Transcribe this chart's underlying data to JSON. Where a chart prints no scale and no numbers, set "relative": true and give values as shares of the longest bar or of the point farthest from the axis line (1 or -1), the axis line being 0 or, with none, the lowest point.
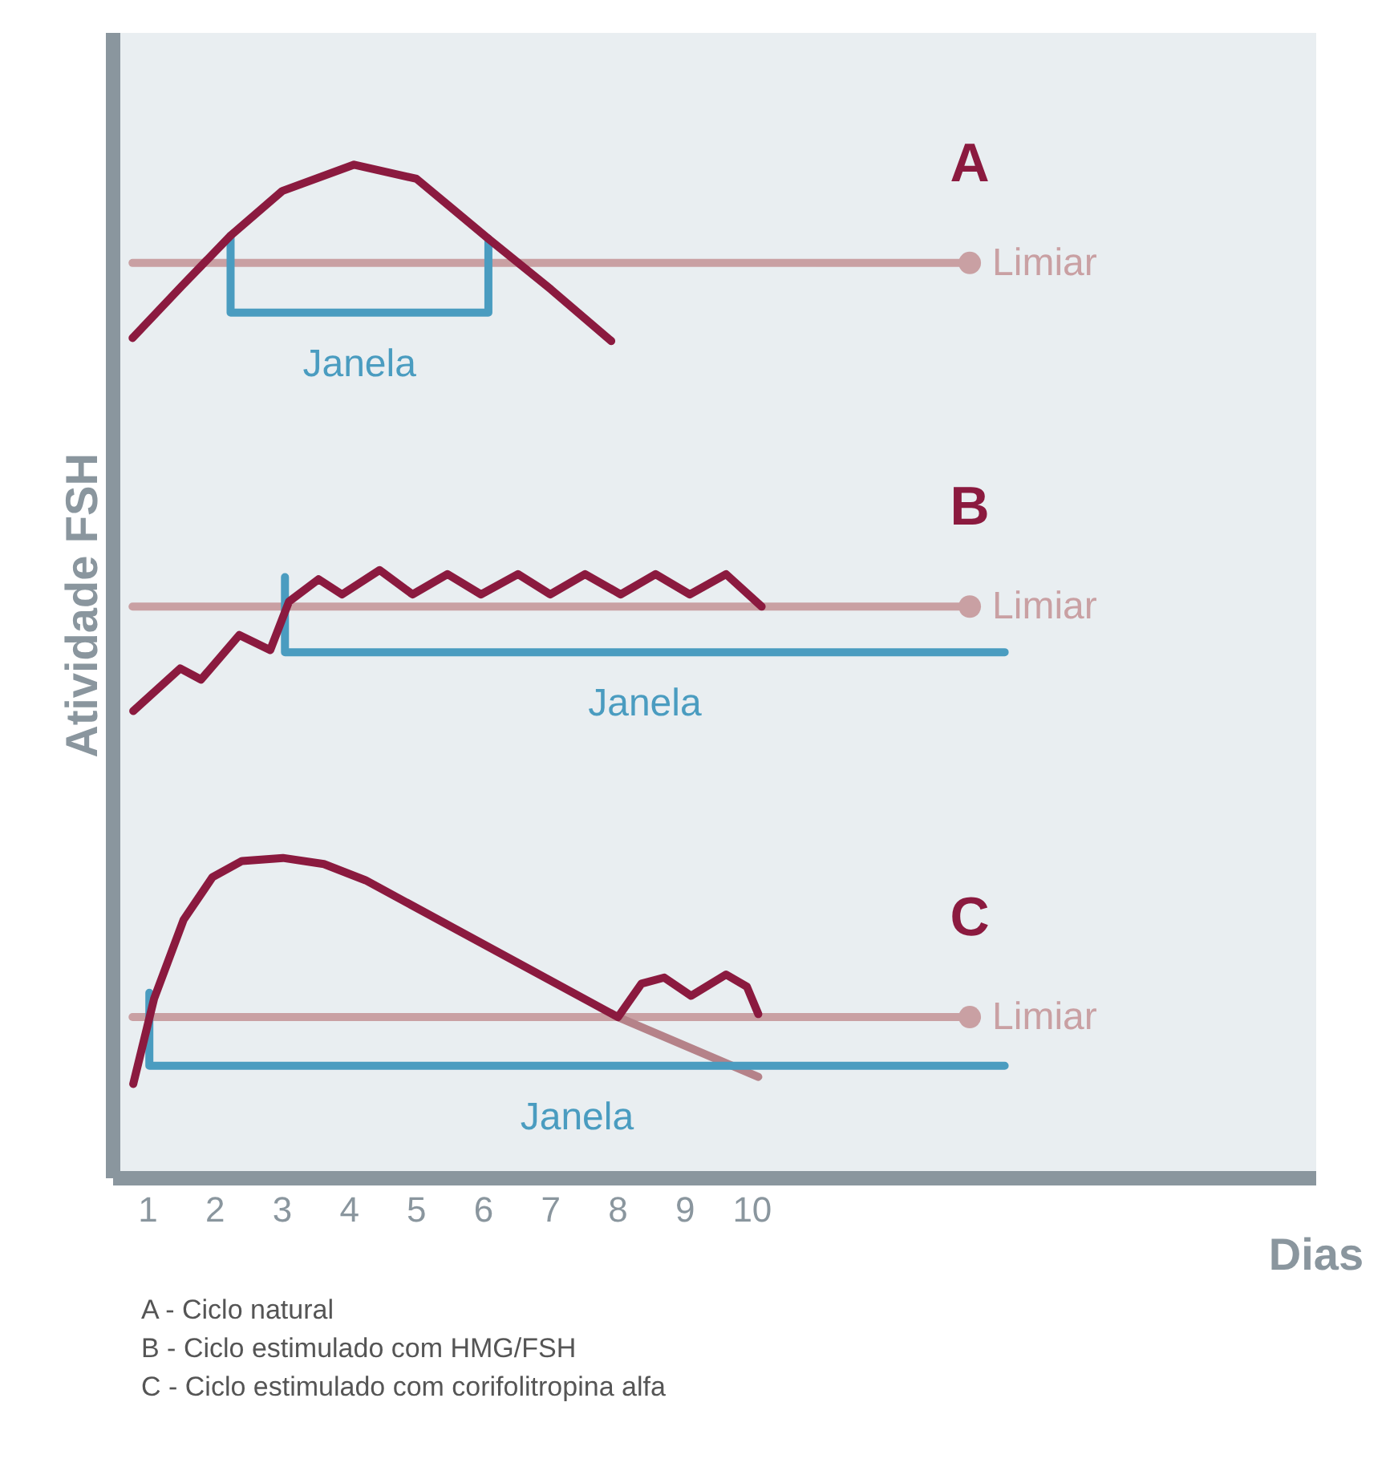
{
  "chart_data": {
    "type": "line",
    "relative": true,
    "xlabel": "Dias",
    "ylabel": "Atividade FSH",
    "xlim": [
      0.48,
      18.4
    ],
    "xticks": [
      1,
      2,
      3,
      4,
      5,
      6,
      7,
      8,
      9,
      10
    ],
    "grid": false,
    "series": [
      {
        "name": "Limiar",
        "color": "#c9a0a3",
        "x": [
          0.77,
          13.24
        ],
        "values": [
          0.903,
          0.903
        ]
      },
      {
        "name": "Janela",
        "color": "#4a9cc0",
        "x": [
          2.23,
          2.23,
          6.07,
          6.07
        ],
        "values": [
          0.93,
          0.854,
          0.854,
          0.927
        ]
      },
      {
        "color": "#8b1a3f",
        "x": [
          0.77,
          1.5,
          2.23,
          3,
          4.07,
          5,
          6.07,
          7,
          7.9
        ],
        "values": [
          0.829,
          0.88,
          0.93,
          0.974,
          1.0,
          0.986,
          0.927,
          0.877,
          0.826
        ]
      },
      {
        "name": "Limiar",
        "color": "#c9a0a3",
        "x": [
          0.77,
          13.24
        ],
        "values": [
          0.564,
          0.564
        ]
      },
      {
        "name": "Janela",
        "color": "#4a9cc0",
        "x": [
          3.04,
          3.04,
          13.76
        ],
        "values": [
          0.593,
          0.519,
          0.519
        ]
      },
      {
        "color": "#8b1a3f",
        "x": [
          0.78,
          1.48,
          1.79,
          2.36,
          2.82,
          3.1,
          3.54,
          3.89,
          4.45,
          4.94,
          5.46,
          5.96,
          6.51,
          6.99,
          7.51,
          8.04,
          8.56,
          9.07,
          9.61,
          10.14
        ],
        "values": [
          0.461,
          0.503,
          0.492,
          0.536,
          0.521,
          0.569,
          0.591,
          0.576,
          0.6,
          0.576,
          0.596,
          0.576,
          0.596,
          0.576,
          0.596,
          0.576,
          0.596,
          0.576,
          0.596,
          0.564
        ]
      },
      {
        "name": "Limiar",
        "color": "#c9a0a3",
        "x": [
          0.77,
          13.24
        ],
        "values": [
          0.159,
          0.159
        ]
      },
      {
        "color": "#b58289",
        "x": [
          8.0,
          10.09
        ],
        "values": [
          0.159,
          0.1
        ]
      },
      {
        "name": "Janela",
        "color": "#4a9cc0",
        "x": [
          1.02,
          1.02,
          13.76
        ],
        "values": [
          0.183,
          0.111,
          0.111
        ]
      },
      {
        "color": "#8b1a3f",
        "x": [
          0.78,
          1.09,
          1.53,
          1.96,
          2.4,
          3.01,
          3.62,
          4.24,
          8.0,
          8.35,
          8.69,
          9.09,
          9.61,
          9.92,
          10.09
        ],
        "values": [
          0.093,
          0.177,
          0.255,
          0.297,
          0.313,
          0.316,
          0.31,
          0.294,
          0.159,
          0.192,
          0.198,
          0.18,
          0.201,
          0.189,
          0.162
        ]
      },
      {
        "type": "scatter",
        "color": "#c9a0a3",
        "x": [
          13.24,
          13.24,
          13.24
        ],
        "values": [
          0.903,
          0.564,
          0.159
        ]
      }
    ],
    "annotations": [
      "A",
      "B",
      "C",
      "A - Ciclo natural",
      "B - Ciclo estimulado com HMG/FSH",
      "C - Ciclo estimulado com corifolitropina alfa"
    ]
  }
}
